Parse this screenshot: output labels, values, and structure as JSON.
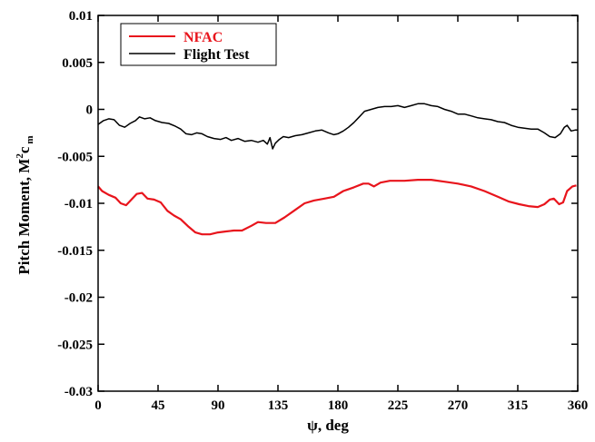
{
  "chart_data": {
    "type": "line",
    "xlabel": "ψ, deg",
    "ylabel_main": "Pitch Moment, M",
    "ylabel_sup": "2",
    "ylabel_c": "c",
    "ylabel_sub": "m",
    "xlim": [
      0,
      360
    ],
    "ylim": [
      -0.03,
      0.01
    ],
    "x_ticks": [
      0,
      45,
      90,
      135,
      180,
      225,
      270,
      315,
      360
    ],
    "y_ticks": [
      0.01,
      0.005,
      0,
      -0.005,
      -0.01,
      -0.015,
      -0.02,
      -0.025,
      -0.03
    ],
    "y_tick_labels": [
      "0.01",
      "0.005",
      "0",
      "-0.005",
      "-0.01",
      "-0.015",
      "-0.02",
      "-0.025",
      "-0.03"
    ],
    "grid": false,
    "legend_position": "top-left",
    "series": [
      {
        "name": "NFAC",
        "color": "#e8141c",
        "points": [
          [
            0,
            -0.0082
          ],
          [
            3,
            -0.0087
          ],
          [
            8,
            -0.0091
          ],
          [
            13,
            -0.0094
          ],
          [
            17,
            -0.01
          ],
          [
            21,
            -0.0102
          ],
          [
            25,
            -0.0096
          ],
          [
            29,
            -0.009
          ],
          [
            33,
            -0.0089
          ],
          [
            37,
            -0.0095
          ],
          [
            42,
            -0.0096
          ],
          [
            47,
            -0.0099
          ],
          [
            52,
            -0.0108
          ],
          [
            57,
            -0.0113
          ],
          [
            62,
            -0.0117
          ],
          [
            68,
            -0.0125
          ],
          [
            73,
            -0.0131
          ],
          [
            78,
            -0.0133
          ],
          [
            84,
            -0.0133
          ],
          [
            90,
            -0.0131
          ],
          [
            96,
            -0.013
          ],
          [
            102,
            -0.0129
          ],
          [
            108,
            -0.0129
          ],
          [
            115,
            -0.0124
          ],
          [
            120,
            -0.012
          ],
          [
            126,
            -0.0121
          ],
          [
            133,
            -0.0121
          ],
          [
            140,
            -0.0115
          ],
          [
            148,
            -0.0107
          ],
          [
            155,
            -0.01
          ],
          [
            162,
            -0.0097
          ],
          [
            170,
            -0.0095
          ],
          [
            177,
            -0.0093
          ],
          [
            184,
            -0.0087
          ],
          [
            192,
            -0.0083
          ],
          [
            199,
            -0.0079
          ],
          [
            203,
            -0.0079
          ],
          [
            207,
            -0.0082
          ],
          [
            212,
            -0.0078
          ],
          [
            219,
            -0.0076
          ],
          [
            230,
            -0.0076
          ],
          [
            240,
            -0.0075
          ],
          [
            250,
            -0.0075
          ],
          [
            260,
            -0.0077
          ],
          [
            270,
            -0.0079
          ],
          [
            280,
            -0.0082
          ],
          [
            290,
            -0.0087
          ],
          [
            300,
            -0.0093
          ],
          [
            308,
            -0.0098
          ],
          [
            316,
            -0.0101
          ],
          [
            323,
            -0.0103
          ],
          [
            330,
            -0.0104
          ],
          [
            335,
            -0.0101
          ],
          [
            339,
            -0.0096
          ],
          [
            342,
            -0.0095
          ],
          [
            346,
            -0.0101
          ],
          [
            349,
            -0.0099
          ],
          [
            352,
            -0.0087
          ],
          [
            356,
            -0.0082
          ],
          [
            359,
            -0.0081
          ]
        ]
      },
      {
        "name": "Flight Test",
        "color": "#000000",
        "points": [
          [
            0,
            -0.0016
          ],
          [
            4,
            -0.0012
          ],
          [
            8,
            -0.001
          ],
          [
            12,
            -0.0011
          ],
          [
            16,
            -0.0017
          ],
          [
            20,
            -0.0019
          ],
          [
            24,
            -0.0015
          ],
          [
            28,
            -0.0012
          ],
          [
            31,
            -0.0008
          ],
          [
            35,
            -0.001
          ],
          [
            39,
            -0.0009
          ],
          [
            43,
            -0.0012
          ],
          [
            48,
            -0.0014
          ],
          [
            53,
            -0.0015
          ],
          [
            58,
            -0.0018
          ],
          [
            62,
            -0.0021
          ],
          [
            66,
            -0.0026
          ],
          [
            70,
            -0.0027
          ],
          [
            74,
            -0.0025
          ],
          [
            78,
            -0.0026
          ],
          [
            82,
            -0.0029
          ],
          [
            87,
            -0.0031
          ],
          [
            92,
            -0.0032
          ],
          [
            96,
            -0.003
          ],
          [
            100,
            -0.0033
          ],
          [
            105,
            -0.0031
          ],
          [
            110,
            -0.0034
          ],
          [
            115,
            -0.0033
          ],
          [
            120,
            -0.0035
          ],
          [
            124,
            -0.0033
          ],
          [
            127,
            -0.0037
          ],
          [
            129,
            -0.003
          ],
          [
            131,
            -0.0042
          ],
          [
            133,
            -0.0036
          ],
          [
            136,
            -0.0032
          ],
          [
            139,
            -0.0029
          ],
          [
            143,
            -0.003
          ],
          [
            148,
            -0.0028
          ],
          [
            153,
            -0.0027
          ],
          [
            158,
            -0.0025
          ],
          [
            163,
            -0.0023
          ],
          [
            168,
            -0.0022
          ],
          [
            173,
            -0.0025
          ],
          [
            177,
            -0.0027
          ],
          [
            180,
            -0.0026
          ],
          [
            184,
            -0.0023
          ],
          [
            188,
            -0.0019
          ],
          [
            192,
            -0.0014
          ],
          [
            196,
            -0.0008
          ],
          [
            200,
            -0.0002
          ],
          [
            205,
            0.0
          ],
          [
            210,
            0.0002
          ],
          [
            215,
            0.0003
          ],
          [
            220,
            0.0003
          ],
          [
            225,
            0.0004
          ],
          [
            230,
            0.0002
          ],
          [
            235,
            0.0004
          ],
          [
            240,
            0.0006
          ],
          [
            245,
            0.0006
          ],
          [
            250,
            0.0004
          ],
          [
            255,
            0.0003
          ],
          [
            260,
            0.0
          ],
          [
            265,
            -0.0002
          ],
          [
            270,
            -0.0005
          ],
          [
            275,
            -0.0005
          ],
          [
            280,
            -0.0007
          ],
          [
            285,
            -0.0009
          ],
          [
            290,
            -0.001
          ],
          [
            295,
            -0.0011
          ],
          [
            300,
            -0.0013
          ],
          [
            305,
            -0.0014
          ],
          [
            310,
            -0.0017
          ],
          [
            315,
            -0.0019
          ],
          [
            320,
            -0.002
          ],
          [
            325,
            -0.0021
          ],
          [
            330,
            -0.0021
          ],
          [
            335,
            -0.0025
          ],
          [
            339,
            -0.0029
          ],
          [
            343,
            -0.003
          ],
          [
            347,
            -0.0026
          ],
          [
            350,
            -0.0019
          ],
          [
            352,
            -0.0017
          ],
          [
            355,
            -0.0023
          ],
          [
            358,
            -0.0022
          ],
          [
            360,
            -0.0022
          ]
        ]
      }
    ]
  }
}
